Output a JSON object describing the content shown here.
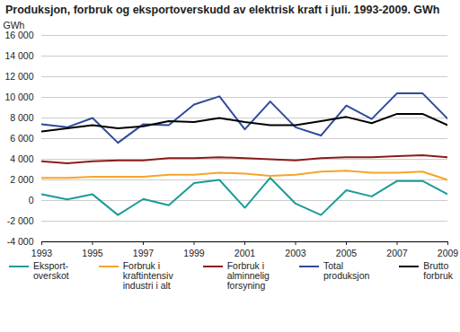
{
  "chart_data": {
    "type": "line",
    "title": "Produksjon, forbruk og eksportoverskudd av elektrisk kraft i juli. 1993-2009. GWh",
    "y_label": "GWh",
    "x": [
      1993,
      1994,
      1995,
      1996,
      1997,
      1998,
      1999,
      2000,
      2001,
      2002,
      2003,
      2004,
      2005,
      2006,
      2007,
      2008,
      2009
    ],
    "xlim": [
      1993,
      2009
    ],
    "xticks": [
      1993,
      1995,
      1997,
      1999,
      2001,
      2003,
      2005,
      2007,
      2009
    ],
    "ylim": [
      -4000,
      16000
    ],
    "yticks": [
      {
        "value": -4000,
        "label": "-4 000"
      },
      {
        "value": -2000,
        "label": "-2 000"
      },
      0,
      {
        "value": 2000,
        "label": "2 000"
      },
      {
        "value": 4000,
        "label": "4 000"
      },
      {
        "value": 6000,
        "label": "6 000"
      },
      {
        "value": 8000,
        "label": "8 000"
      },
      {
        "value": 10000,
        "label": "10 000"
      },
      {
        "value": 12000,
        "label": "12 000"
      },
      {
        "value": 14000,
        "label": "14 000"
      },
      {
        "value": 16000,
        "label": "16 000"
      }
    ],
    "grid": true,
    "legend": "bottom",
    "series": [
      {
        "name": "Eksport-\noverskot",
        "color": "#1a9c98",
        "values": [
          600,
          100,
          600,
          -1400,
          150,
          -450,
          1700,
          2000,
          -700,
          2200,
          -300,
          -1400,
          1000,
          400,
          1900,
          1900,
          600
        ]
      },
      {
        "name": "Forbruk i\nkraftintensiv\nindustri i alt",
        "color": "#f5a52a",
        "values": [
          2200,
          2200,
          2300,
          2300,
          2300,
          2500,
          2500,
          2700,
          2600,
          2400,
          2500,
          2800,
          2900,
          2700,
          2700,
          2800,
          2000
        ]
      },
      {
        "name": "Forbruk i\nalminnelig\nforsyning",
        "color": "#8b1c1c",
        "values": [
          3800,
          3600,
          3800,
          3900,
          3900,
          4100,
          4100,
          4200,
          4100,
          4000,
          3900,
          4100,
          4200,
          4200,
          4300,
          4400,
          4200
        ]
      },
      {
        "name": "Total\nproduksjon",
        "color": "#2e4a9a",
        "values": [
          7400,
          7100,
          8000,
          5600,
          7400,
          7300,
          9300,
          10100,
          6900,
          9600,
          7100,
          6300,
          9200,
          7900,
          10400,
          10400,
          7900
        ]
      },
      {
        "name": "Brutto\nforbruk",
        "color": "#000000",
        "values": [
          6700,
          7000,
          7300,
          7000,
          7200,
          7700,
          7600,
          8000,
          7600,
          7300,
          7300,
          7700,
          8100,
          7500,
          8400,
          8400,
          7300
        ]
      }
    ]
  }
}
